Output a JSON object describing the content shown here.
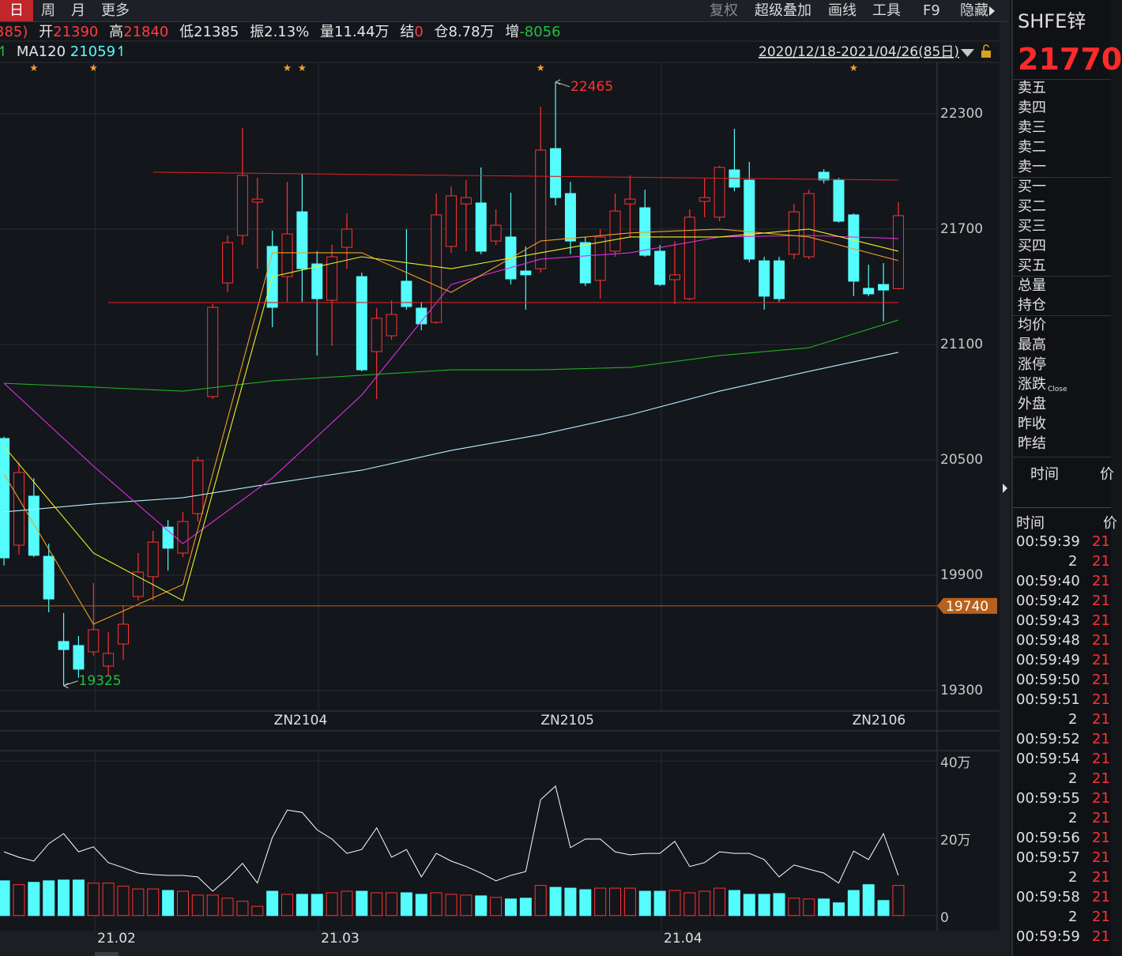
{
  "toolbar": {
    "left": [
      "日",
      "周",
      "月",
      "更多"
    ],
    "right": [
      "复权",
      "超级叠加",
      "画线",
      "工具",
      "F9",
      "隐藏"
    ]
  },
  "info": {
    "prev_fragment": "385)",
    "open_label": "开",
    "open": 21390,
    "high_label": "高",
    "high": 21840,
    "low": "低21385",
    "amplitude": "振2.13%",
    "volume": "量11.44万",
    "settle_label": "结",
    "settle": 0,
    "oi": "仓8.78万",
    "change_label": "增",
    "change": -8056,
    "ma_arrow": "↿",
    "ma_label": "MA120",
    "ma_value": "21059↿",
    "date_range": "2020/12/18-2021/04/26(85日)"
  },
  "chart_data": [
    {
      "type": "candlestick",
      "open": [
        20611,
        20056,
        20311,
        19998,
        19555,
        19534,
        19501,
        19427,
        19542,
        19789,
        19892,
        20150,
        20015,
        20220,
        20829,
        21420,
        21667,
        21840,
        21610,
        21453,
        21790,
        21519,
        21330,
        21605,
        21453,
        21063,
        21145,
        21429,
        21289,
        21215,
        21610,
        21831,
        21836,
        21638,
        21659,
        21482,
        21494,
        22119,
        21885,
        21630,
        21433,
        21585,
        21831,
        21811,
        21585,
        21437,
        21338,
        21844,
        21762,
        22008,
        21955,
        21535,
        21535,
        21569,
        21556,
        21996,
        21955,
        21774,
        21392,
        21412,
        21390
      ],
      "high": [
        20620,
        20487,
        20405,
        20064,
        19703,
        19583,
        19859,
        19604,
        19744,
        20015,
        20130,
        20187,
        20228,
        20516,
        21310,
        21667,
        22226,
        21967,
        21692,
        21946,
        21988,
        21585,
        21618,
        21782,
        21474,
        21289,
        21330,
        21700,
        21322,
        21885,
        21922,
        21955,
        22021,
        21803,
        21889,
        21610,
        22337,
        22465,
        21946,
        21659,
        21700,
        21885,
        21979,
        21905,
        21618,
        21638,
        21803,
        21967,
        22029,
        22222,
        22049,
        21556,
        21556,
        21831,
        21905,
        22012,
        21967,
        21782,
        21515,
        21523,
        21840
      ],
      "low": [
        19950,
        20007,
        19994,
        19707,
        19325,
        19366,
        19481,
        19378,
        19460,
        19768,
        19768,
        19924,
        19994,
        20179,
        20816,
        21371,
        21618,
        21494,
        21190,
        21322,
        21322,
        21042,
        21092,
        21494,
        20960,
        20816,
        21125,
        21281,
        21174,
        21207,
        21577,
        21585,
        21569,
        21618,
        21412,
        21281,
        21474,
        21823,
        21569,
        21404,
        21338,
        21556,
        21659,
        21556,
        21404,
        21309,
        21330,
        21762,
        21741,
        21897,
        21527,
        21281,
        21322,
        21544,
        21544,
        21938,
        21733,
        21351,
        21351,
        21219,
        21385
      ],
      "close": [
        19990,
        20434,
        20003,
        19776,
        19513,
        19411,
        19616,
        19493,
        19645,
        19916,
        20072,
        20040,
        20179,
        20496,
        21293,
        21630,
        21979,
        21856,
        21293,
        21675,
        21494,
        21338,
        21556,
        21700,
        20968,
        21236,
        21256,
        21297,
        21207,
        21774,
        21873,
        21864,
        21585,
        21720,
        21441,
        21462,
        22111,
        21864,
        21638,
        21420,
        21659,
        21794,
        21856,
        21564,
        21412,
        21462,
        21762,
        21864,
        22021,
        21918,
        21544,
        21351,
        21338,
        21790,
        21885,
        21955,
        21741,
        21429,
        21363,
        21383,
        21770
      ],
      "colors": {
        "up": "#ff3232",
        "down": "#54fcfc"
      },
      "ylim": [
        19193,
        22567
      ],
      "yticks": [
        19300,
        19900,
        20500,
        21100,
        21700,
        22300
      ],
      "grid": true,
      "xlim": [
        -0.27,
        62.6
      ],
      "xticks": [
        {
          "value": 19.9,
          "label": "ZN2104"
        },
        {
          "value": 37.8,
          "label": "ZN2105"
        },
        {
          "value": 58.7,
          "label": "ZN2106"
        }
      ],
      "lines": [
        {
          "color": "#b4f0ff",
          "x": [
            0,
            6,
            12,
            18,
            24,
            30,
            36,
            42,
            48,
            54,
            60
          ],
          "values": [
            20229,
            20270,
            20303,
            20377,
            20446,
            20549,
            20631,
            20734,
            20857,
            20960,
            21059
          ]
        },
        {
          "color": "#22b022",
          "x": [
            0,
            6,
            12,
            18,
            24,
            30,
            36,
            42,
            48,
            54,
            60
          ],
          "values": [
            20898,
            20878,
            20857,
            20911,
            20940,
            20968,
            20968,
            20981,
            21042,
            21083,
            21227
          ]
        },
        {
          "color": "#e030e0",
          "x": [
            0,
            6,
            12,
            18,
            24,
            30,
            36,
            42,
            48,
            54,
            60
          ],
          "values": [
            20898,
            20467,
            20064,
            20405,
            20837,
            21412,
            21544,
            21577,
            21659,
            21667,
            21651
          ]
        },
        {
          "color": "#f0a020",
          "x": [
            0,
            6,
            12,
            18,
            24,
            30,
            36,
            42,
            48,
            54,
            60
          ],
          "values": [
            20426,
            19645,
            19851,
            21577,
            21577,
            21371,
            21638,
            21680,
            21700,
            21659,
            21536
          ]
        },
        {
          "color": "#f0f020",
          "x": [
            0,
            6,
            12,
            18,
            24,
            30,
            36,
            42,
            48,
            54,
            60
          ],
          "values": [
            20570,
            20015,
            19768,
            21453,
            21556,
            21494,
            21577,
            21659,
            21659,
            21700,
            21585
          ]
        },
        {
          "color": "#d02020",
          "x": [
            10,
            60
          ],
          "values": [
            21996,
            21955
          ]
        },
        {
          "color": "#d02020",
          "x": [
            7,
            60
          ],
          "values": [
            21318,
            21318
          ]
        }
      ],
      "stars": [
        2,
        6,
        19,
        20,
        36,
        57
      ],
      "annotations": [
        {
          "x": 37,
          "value": 22465,
          "color": "#ff3232"
        },
        {
          "x": 4,
          "value": 19325,
          "color": "#20c040"
        }
      ],
      "price_line": {
        "value": 19740,
        "color": "#b8601c"
      }
    },
    {
      "type": "bar",
      "values": [
        9.0,
        8.0,
        8.6,
        9.0,
        9.2,
        9.2,
        8.4,
        8.4,
        7.6,
        6.9,
        6.9,
        6.5,
        6.3,
        5.3,
        5.3,
        4.5,
        3.7,
        2.4,
        6.3,
        5.5,
        5.5,
        5.5,
        5.9,
        6.3,
        6.3,
        5.9,
        5.9,
        5.9,
        5.5,
        5.9,
        5.5,
        5.3,
        5.1,
        4.7,
        4.3,
        4.5,
        7.8,
        7.3,
        7.1,
        6.7,
        7.1,
        7.1,
        7.1,
        6.3,
        6.3,
        6.5,
        5.9,
        6.3,
        7.1,
        6.5,
        5.5,
        5.5,
        5.7,
        4.5,
        4.3,
        4.3,
        3.3,
        6.5,
        8.0,
        3.9,
        7.8
      ],
      "line": {
        "color": "#ffffff",
        "values": [
          16.5,
          15.1,
          14.1,
          18.6,
          21.2,
          16.5,
          17.8,
          13.7,
          12.4,
          11.0,
          10.6,
          10.4,
          10.4,
          10.0,
          6.3,
          9.6,
          13.5,
          8.4,
          20.2,
          27.3,
          26.7,
          22.2,
          19.8,
          16.1,
          17.1,
          22.7,
          15.1,
          17.1,
          10.0,
          16.1,
          14.1,
          12.7,
          11.0,
          9.0,
          10.4,
          11.4,
          30.0,
          33.5,
          17.6,
          19.8,
          19.8,
          16.5,
          15.7,
          16.1,
          16.1,
          19.2,
          12.7,
          13.7,
          16.5,
          16.1,
          16.1,
          14.5,
          10.0,
          13.1,
          12.0,
          11.0,
          8.4,
          16.7,
          14.5,
          21.2,
          10.4
        ]
      },
      "ylim": [
        -2.9,
        42.7
      ],
      "yticks": [
        {
          "value": 40,
          "label": "40万"
        },
        {
          "value": 20,
          "label": "20万"
        },
        0
      ],
      "grid": true,
      "xlim": [
        -0.27,
        62.6
      ],
      "xticks": [
        {
          "value": 6.1,
          "label": "21.02"
        },
        {
          "value": 21.1,
          "label": "21.03"
        },
        {
          "value": 44.1,
          "label": "21.04"
        }
      ]
    }
  ],
  "quote": {
    "symbol": "SHFE锌",
    "price": 21770,
    "labels": [
      "卖五",
      "卖四",
      "卖三",
      "卖二",
      "卖一",
      "买一",
      "买二",
      "买三",
      "买四",
      "买五",
      "总量",
      "持仓",
      "均价",
      "最高",
      "涨停",
      "涨跌",
      "外盘",
      "昨收",
      "昨结"
    ],
    "close_tag": "Close",
    "tabs": [
      "时间",
      "价"
    ]
  },
  "ticks_table": {
    "header": [
      "时间",
      "价"
    ],
    "rows": [
      [
        "00:59:39",
        "21"
      ],
      [
        "2",
        "21"
      ],
      [
        "00:59:40",
        "21"
      ],
      [
        "00:59:42",
        "21"
      ],
      [
        "00:59:43",
        "21"
      ],
      [
        "00:59:48",
        "21"
      ],
      [
        "00:59:49",
        "21"
      ],
      [
        "00:59:50",
        "21"
      ],
      [
        "00:59:51",
        "21"
      ],
      [
        "2",
        "21"
      ],
      [
        "00:59:52",
        "21"
      ],
      [
        "00:59:54",
        "21"
      ],
      [
        "2",
        "21"
      ],
      [
        "00:59:55",
        "21"
      ],
      [
        "2",
        "21"
      ],
      [
        "00:59:56",
        "21"
      ],
      [
        "00:59:57",
        "21"
      ],
      [
        "2",
        "21"
      ],
      [
        "00:59:58",
        "21"
      ],
      [
        "2",
        "21"
      ],
      [
        "00:59:59",
        "21"
      ]
    ]
  }
}
